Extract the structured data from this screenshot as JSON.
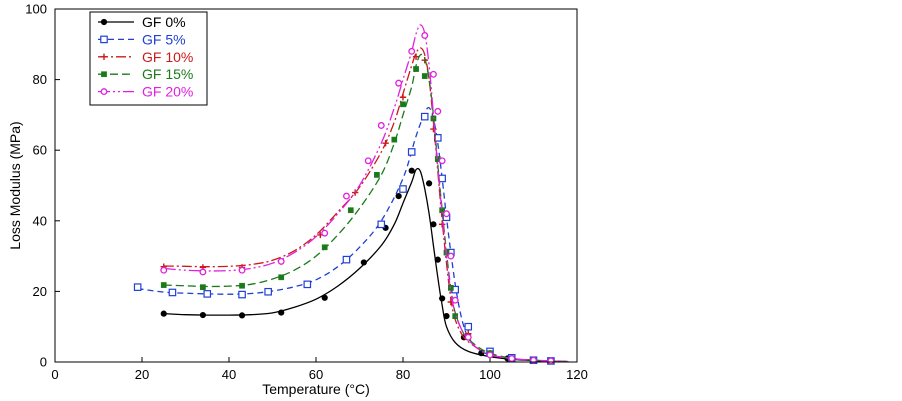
{
  "chart_data": {
    "type": "line",
    "title": "",
    "xlabel": "Temperature (°C)",
    "ylabel": "Loss Modulus (MPa)",
    "xlim": [
      0,
      120
    ],
    "ylim": [
      0,
      100
    ],
    "xticks": [
      0,
      20,
      40,
      60,
      80,
      100,
      120
    ],
    "yticks": [
      0,
      20,
      40,
      60,
      80,
      100
    ],
    "legend_position": "top-left",
    "series": [
      {
        "name": "GF 0%",
        "color": "#000000",
        "dash": "solid",
        "marker": "circle-filled",
        "curve": [
          [
            25,
            13.7
          ],
          [
            30,
            13.4
          ],
          [
            35,
            13.3
          ],
          [
            40,
            13.3
          ],
          [
            45,
            13.4
          ],
          [
            50,
            13.9
          ],
          [
            55,
            15.5
          ],
          [
            60,
            17.8
          ],
          [
            65,
            21.5
          ],
          [
            70,
            26.5
          ],
          [
            75,
            33
          ],
          [
            78,
            39
          ],
          [
            80,
            45
          ],
          [
            82,
            51
          ],
          [
            83,
            54.5
          ],
          [
            84,
            54
          ],
          [
            85,
            49
          ],
          [
            86,
            42
          ],
          [
            87,
            33
          ],
          [
            88,
            24
          ],
          [
            89,
            16
          ],
          [
            90,
            10
          ],
          [
            92,
            5.5
          ],
          [
            95,
            3
          ],
          [
            100,
            1.5
          ],
          [
            105,
            0.8
          ],
          [
            110,
            0.4
          ],
          [
            118,
            0.1
          ]
        ],
        "markers": [
          [
            25,
            13.7
          ],
          [
            34,
            13.3
          ],
          [
            43,
            13.2
          ],
          [
            52,
            14
          ],
          [
            62,
            18.2
          ],
          [
            71,
            28.2
          ],
          [
            76,
            38
          ],
          [
            79,
            47
          ],
          [
            82,
            54.2
          ],
          [
            86,
            50.6
          ],
          [
            87,
            39
          ],
          [
            88,
            29
          ],
          [
            89,
            18
          ],
          [
            90,
            13
          ],
          [
            94,
            7
          ],
          [
            98,
            2.5
          ],
          [
            104,
            1
          ],
          [
            110,
            0.5
          ],
          [
            114,
            0.2
          ]
        ]
      },
      {
        "name": "GF 5%",
        "color": "#1f3fd6",
        "dash": "6,4",
        "marker": "square-open",
        "curve": [
          [
            19,
            20.8
          ],
          [
            25,
            19.8
          ],
          [
            30,
            19.5
          ],
          [
            35,
            19.3
          ],
          [
            40,
            19.2
          ],
          [
            45,
            19.4
          ],
          [
            50,
            20.1
          ],
          [
            55,
            21.3
          ],
          [
            60,
            23.3
          ],
          [
            65,
            27
          ],
          [
            70,
            32.5
          ],
          [
            75,
            40
          ],
          [
            80,
            52
          ],
          [
            83,
            64
          ],
          [
            85,
            70.5
          ],
          [
            86,
            72
          ],
          [
            87,
            69
          ],
          [
            88,
            62
          ],
          [
            89,
            52
          ],
          [
            90,
            41
          ],
          [
            91,
            31
          ],
          [
            92,
            22
          ],
          [
            93,
            15
          ],
          [
            94,
            10
          ],
          [
            95,
            7
          ],
          [
            97,
            4
          ],
          [
            100,
            2
          ],
          [
            105,
            1
          ],
          [
            110,
            0.5
          ],
          [
            118,
            0.1
          ]
        ],
        "markers": [
          [
            19,
            21.2
          ],
          [
            27,
            19.7
          ],
          [
            35,
            19.3
          ],
          [
            43,
            19.1
          ],
          [
            49,
            19.9
          ],
          [
            58,
            22
          ],
          [
            67,
            29
          ],
          [
            75,
            39
          ],
          [
            80,
            49
          ],
          [
            82,
            59.5
          ],
          [
            85,
            69.5
          ],
          [
            88,
            63.5
          ],
          [
            89,
            52
          ],
          [
            90,
            41
          ],
          [
            91,
            31
          ],
          [
            92,
            20.5
          ],
          [
            95,
            10
          ],
          [
            100,
            3
          ],
          [
            105,
            1.2
          ],
          [
            110,
            0.5
          ],
          [
            114,
            0.3
          ]
        ]
      },
      {
        "name": "GF 10%",
        "color": "#cc1a1a",
        "dash": "10,3,2,3",
        "marker": "plus",
        "curve": [
          [
            25,
            27.2
          ],
          [
            30,
            27.1
          ],
          [
            35,
            27
          ],
          [
            40,
            27.1
          ],
          [
            45,
            27.6
          ],
          [
            50,
            28.8
          ],
          [
            55,
            31.5
          ],
          [
            60,
            36
          ],
          [
            65,
            42.5
          ],
          [
            70,
            49.5
          ],
          [
            75,
            59.5
          ],
          [
            78,
            68
          ],
          [
            80,
            76
          ],
          [
            82,
            84
          ],
          [
            83,
            87.5
          ],
          [
            84,
            89
          ],
          [
            85,
            87
          ],
          [
            86,
            80
          ],
          [
            87,
            68
          ],
          [
            88,
            54
          ],
          [
            89,
            40
          ],
          [
            90,
            28
          ],
          [
            91,
            18
          ],
          [
            92,
            12
          ],
          [
            94,
            7
          ],
          [
            97,
            4
          ],
          [
            100,
            2
          ],
          [
            105,
            1
          ],
          [
            110,
            0.5
          ],
          [
            118,
            0.1
          ]
        ],
        "markers": [
          [
            25,
            27
          ],
          [
            34,
            26.8
          ],
          [
            43,
            26.8
          ],
          [
            52,
            28.5
          ],
          [
            61,
            36
          ],
          [
            69,
            48
          ],
          [
            76,
            62
          ],
          [
            80,
            75
          ],
          [
            83,
            86.5
          ],
          [
            85,
            85.5
          ],
          [
            87,
            66
          ],
          [
            89,
            39
          ],
          [
            91,
            17
          ],
          [
            95,
            8
          ],
          [
            100,
            2.5
          ],
          [
            105,
            1
          ],
          [
            110,
            0.5
          ]
        ]
      },
      {
        "name": "GF 15%",
        "color": "#1a7a1a",
        "dash": "8,4",
        "marker": "square-filled",
        "curve": [
          [
            25,
            21.8
          ],
          [
            30,
            21.6
          ],
          [
            35,
            21.4
          ],
          [
            40,
            21.5
          ],
          [
            45,
            22
          ],
          [
            50,
            23.5
          ],
          [
            55,
            26
          ],
          [
            60,
            30
          ],
          [
            65,
            36
          ],
          [
            70,
            43.5
          ],
          [
            75,
            53
          ],
          [
            78,
            62
          ],
          [
            80,
            70
          ],
          [
            82,
            78
          ],
          [
            83,
            84
          ],
          [
            84,
            87
          ],
          [
            85,
            86
          ],
          [
            86,
            80
          ],
          [
            87,
            70
          ],
          [
            88,
            56
          ],
          [
            89,
            43
          ],
          [
            90,
            31
          ],
          [
            91,
            21
          ],
          [
            92,
            14
          ],
          [
            94,
            8
          ],
          [
            97,
            4.5
          ],
          [
            100,
            2.5
          ],
          [
            105,
            1
          ],
          [
            110,
            0.5
          ],
          [
            118,
            0.1
          ]
        ],
        "markers": [
          [
            25,
            21.8
          ],
          [
            34,
            21.2
          ],
          [
            43,
            21.6
          ],
          [
            52,
            24
          ],
          [
            62,
            32.5
          ],
          [
            68,
            43
          ],
          [
            74,
            53
          ],
          [
            78,
            63
          ],
          [
            80,
            73
          ],
          [
            83,
            83
          ],
          [
            85,
            81
          ],
          [
            87,
            69
          ],
          [
            88,
            57.5
          ],
          [
            89,
            43
          ],
          [
            90,
            31
          ],
          [
            91,
            21
          ],
          [
            92,
            13
          ],
          [
            95,
            7
          ],
          [
            100,
            2.5
          ],
          [
            105,
            1
          ],
          [
            110,
            0.5
          ],
          [
            114,
            0.2
          ]
        ]
      },
      {
        "name": "GF 20%",
        "color": "#e020e0",
        "dash": "12,3,2,3,2,3",
        "marker": "circle-open",
        "curve": [
          [
            25,
            26.5
          ],
          [
            30,
            26
          ],
          [
            35,
            25.8
          ],
          [
            40,
            25.9
          ],
          [
            45,
            26.5
          ],
          [
            50,
            28
          ],
          [
            55,
            31
          ],
          [
            60,
            35.5
          ],
          [
            65,
            42
          ],
          [
            70,
            50
          ],
          [
            75,
            62
          ],
          [
            78,
            72
          ],
          [
            80,
            80
          ],
          [
            82,
            88
          ],
          [
            83,
            93
          ],
          [
            84,
            95.5
          ],
          [
            85,
            93
          ],
          [
            86,
            84
          ],
          [
            87,
            70
          ],
          [
            88,
            55
          ],
          [
            89,
            42
          ],
          [
            90,
            30
          ],
          [
            91,
            20
          ],
          [
            92,
            14
          ],
          [
            94,
            8
          ],
          [
            97,
            4
          ],
          [
            100,
            2
          ],
          [
            105,
            1
          ],
          [
            110,
            0.5
          ],
          [
            118,
            0.1
          ]
        ],
        "markers": [
          [
            25,
            26
          ],
          [
            34,
            25.5
          ],
          [
            43,
            26
          ],
          [
            52,
            28.5
          ],
          [
            62,
            36.5
          ],
          [
            67,
            47
          ],
          [
            72,
            57
          ],
          [
            75,
            67
          ],
          [
            79,
            79
          ],
          [
            82,
            88
          ],
          [
            85,
            92.5
          ],
          [
            87,
            81.5
          ],
          [
            88,
            71
          ],
          [
            89,
            57
          ],
          [
            90,
            42
          ],
          [
            91,
            30
          ],
          [
            92,
            17.5
          ],
          [
            95,
            7
          ],
          [
            100,
            2
          ],
          [
            105,
            1
          ],
          [
            110,
            0.5
          ],
          [
            114,
            0.3
          ]
        ]
      }
    ]
  }
}
